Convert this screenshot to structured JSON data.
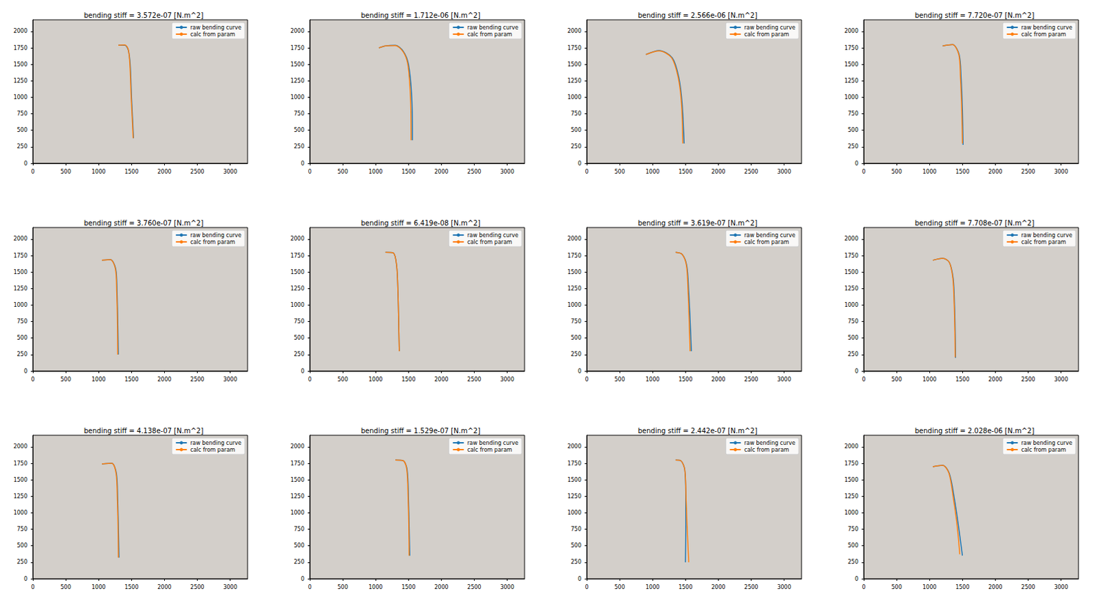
{
  "chart_data": [
    {
      "type": "line",
      "title": "bending stiff = 3.572e-07 [N.m^2]",
      "xlim": [
        0,
        3264
      ],
      "ylim": [
        0,
        2176
      ],
      "xticks": [
        0,
        500,
        1000,
        1500,
        2000,
        2500,
        3000
      ],
      "yticks": [
        0,
        250,
        500,
        750,
        1000,
        1250,
        1500,
        1750,
        2000
      ],
      "legend": "upper right",
      "grid": false,
      "series": [
        {
          "name": "raw bending curve",
          "color": "#1f77b4",
          "x": [
            1300,
            1400,
            1450,
            1480,
            1500,
            1520,
            1530
          ],
          "values": [
            1790,
            1790,
            1720,
            1500,
            1000,
            600,
            380
          ]
        },
        {
          "name": "calc from param",
          "color": "#ff7f0e",
          "x": [
            1300,
            1400,
            1450,
            1475,
            1495,
            1515,
            1525
          ],
          "values": [
            1790,
            1795,
            1730,
            1500,
            1000,
            600,
            380
          ]
        }
      ]
    },
    {
      "type": "line",
      "title": "bending stiff = 1.712e-06 [N.m^2]",
      "xlim": [
        0,
        3264
      ],
      "ylim": [
        0,
        2176
      ],
      "xticks": [
        0,
        500,
        1000,
        1500,
        2000,
        2500,
        3000
      ],
      "yticks": [
        0,
        250,
        500,
        750,
        1000,
        1250,
        1500,
        1750,
        2000
      ],
      "legend": "upper right",
      "grid": false,
      "series": [
        {
          "name": "raw bending curve",
          "color": "#1f77b4",
          "x": [
            1050,
            1150,
            1300,
            1420,
            1500,
            1550,
            1560
          ],
          "values": [
            1750,
            1780,
            1790,
            1700,
            1500,
            1000,
            350
          ]
        },
        {
          "name": "calc from param",
          "color": "#ff7f0e",
          "x": [
            1050,
            1150,
            1300,
            1420,
            1490,
            1530,
            1540
          ],
          "values": [
            1750,
            1780,
            1785,
            1690,
            1500,
            1000,
            350
          ]
        }
      ]
    },
    {
      "type": "line",
      "title": "bending stiff = 2.566e-06 [N.m^2]",
      "xlim": [
        0,
        3264
      ],
      "ylim": [
        0,
        2176
      ],
      "xticks": [
        0,
        500,
        1000,
        1500,
        2000,
        2500,
        3000
      ],
      "yticks": [
        0,
        250,
        500,
        750,
        1000,
        1250,
        1500,
        1750,
        2000
      ],
      "legend": "upper right",
      "grid": false,
      "series": [
        {
          "name": "raw bending curve",
          "color": "#1f77b4",
          "x": [
            900,
            1100,
            1300,
            1400,
            1450,
            1480
          ],
          "values": [
            1650,
            1710,
            1600,
            1300,
            900,
            300
          ]
        },
        {
          "name": "calc from param",
          "color": "#ff7f0e",
          "x": [
            900,
            1100,
            1290,
            1390,
            1440,
            1460
          ],
          "values": [
            1650,
            1705,
            1600,
            1300,
            900,
            300
          ]
        }
      ]
    },
    {
      "type": "line",
      "title": "bending stiff = 7.720e-07 [N.m^2]",
      "xlim": [
        0,
        3264
      ],
      "ylim": [
        0,
        2176
      ],
      "xticks": [
        0,
        500,
        1000,
        1500,
        2000,
        2500,
        3000
      ],
      "yticks": [
        0,
        250,
        500,
        750,
        1000,
        1250,
        1500,
        1750,
        2000
      ],
      "legend": "upper right",
      "grid": false,
      "series": [
        {
          "name": "raw bending curve",
          "color": "#1f77b4",
          "x": [
            1200,
            1350,
            1450,
            1480,
            1500,
            1510
          ],
          "values": [
            1780,
            1800,
            1650,
            1300,
            800,
            280
          ]
        },
        {
          "name": "calc from param",
          "color": "#ff7f0e",
          "x": [
            1200,
            1350,
            1445,
            1470,
            1490,
            1500
          ],
          "values": [
            1780,
            1800,
            1650,
            1300,
            800,
            300
          ]
        }
      ]
    },
    {
      "type": "line",
      "title": "bending stiff = 3.760e-07 [N.m^2]",
      "xlim": [
        0,
        3264
      ],
      "ylim": [
        0,
        2176
      ],
      "xticks": [
        0,
        500,
        1000,
        1500,
        2000,
        2500,
        3000
      ],
      "yticks": [
        0,
        250,
        500,
        750,
        1000,
        1250,
        1500,
        1750,
        2000
      ],
      "legend": "upper right",
      "grid": false,
      "series": [
        {
          "name": "raw bending curve",
          "color": "#1f77b4",
          "x": [
            1050,
            1180,
            1260,
            1280,
            1290,
            1300
          ],
          "values": [
            1680,
            1690,
            1550,
            1200,
            800,
            250
          ]
        },
        {
          "name": "calc from param",
          "color": "#ff7f0e",
          "x": [
            1050,
            1180,
            1255,
            1275,
            1285,
            1290
          ],
          "values": [
            1680,
            1690,
            1550,
            1200,
            800,
            250
          ]
        }
      ]
    },
    {
      "type": "line",
      "title": "bending stiff = 6.419e-08 [N.m^2]",
      "xlim": [
        0,
        3264
      ],
      "ylim": [
        0,
        2176
      ],
      "xticks": [
        0,
        500,
        1000,
        1500,
        2000,
        2500,
        3000
      ],
      "yticks": [
        0,
        250,
        500,
        750,
        1000,
        1250,
        1500,
        1750,
        2000
      ],
      "legend": "upper right",
      "grid": false,
      "series": [
        {
          "name": "raw bending curve",
          "color": "#1f77b4",
          "x": [
            1150,
            1270,
            1320,
            1340,
            1350,
            1360
          ],
          "values": [
            1800,
            1790,
            1600,
            1200,
            800,
            300
          ]
        },
        {
          "name": "calc from param",
          "color": "#ff7f0e",
          "x": [
            1150,
            1270,
            1320,
            1340,
            1350,
            1360
          ],
          "values": [
            1800,
            1790,
            1600,
            1200,
            800,
            300
          ]
        }
      ]
    },
    {
      "type": "line",
      "title": "bending stiff = 3.619e-07 [N.m^2]",
      "xlim": [
        0,
        3264
      ],
      "ylim": [
        0,
        2176
      ],
      "xticks": [
        0,
        500,
        1000,
        1500,
        2000,
        2500,
        3000
      ],
      "yticks": [
        0,
        250,
        500,
        750,
        1000,
        1250,
        1500,
        1750,
        2000
      ],
      "legend": "upper right",
      "grid": false,
      "series": [
        {
          "name": "raw bending curve",
          "color": "#1f77b4",
          "x": [
            1350,
            1450,
            1520,
            1550,
            1570,
            1590
          ],
          "values": [
            1800,
            1770,
            1600,
            1200,
            800,
            300
          ]
        },
        {
          "name": "calc from param",
          "color": "#ff7f0e",
          "x": [
            1350,
            1450,
            1515,
            1540,
            1555,
            1570
          ],
          "values": [
            1800,
            1770,
            1600,
            1200,
            800,
            300
          ]
        }
      ]
    },
    {
      "type": "line",
      "title": "bending stiff = 7.708e-07 [N.m^2]",
      "xlim": [
        0,
        3264
      ],
      "ylim": [
        0,
        2176
      ],
      "xticks": [
        0,
        500,
        1000,
        1500,
        2000,
        2500,
        3000
      ],
      "yticks": [
        0,
        250,
        500,
        750,
        1000,
        1250,
        1500,
        1750,
        2000
      ],
      "legend": "upper right",
      "grid": false,
      "series": [
        {
          "name": "raw bending curve",
          "color": "#1f77b4",
          "x": [
            1050,
            1200,
            1300,
            1360,
            1380,
            1390,
            1395
          ],
          "values": [
            1680,
            1710,
            1650,
            1400,
            1000,
            600,
            200
          ]
        },
        {
          "name": "calc from param",
          "color": "#ff7f0e",
          "x": [
            1050,
            1200,
            1300,
            1355,
            1375,
            1385,
            1390
          ],
          "values": [
            1680,
            1710,
            1650,
            1400,
            1000,
            600,
            210
          ]
        }
      ]
    },
    {
      "type": "line",
      "title": "bending stiff = 4.138e-07 [N.m^2]",
      "xlim": [
        0,
        3264
      ],
      "ylim": [
        0,
        2176
      ],
      "xticks": [
        0,
        500,
        1000,
        1500,
        2000,
        2500,
        3000
      ],
      "yticks": [
        0,
        250,
        500,
        750,
        1000,
        1250,
        1500,
        1750,
        2000
      ],
      "legend": "upper right",
      "grid": false,
      "series": [
        {
          "name": "raw bending curve",
          "color": "#1f77b4",
          "x": [
            1050,
            1200,
            1270,
            1290,
            1300,
            1310
          ],
          "values": [
            1740,
            1750,
            1600,
            1200,
            800,
            320
          ]
        },
        {
          "name": "calc from param",
          "color": "#ff7f0e",
          "x": [
            1050,
            1200,
            1265,
            1285,
            1295,
            1300
          ],
          "values": [
            1740,
            1750,
            1600,
            1200,
            800,
            320
          ]
        }
      ]
    },
    {
      "type": "line",
      "title": "bending stiff = 1.529e-07 [N.m^2]",
      "xlim": [
        0,
        3264
      ],
      "ylim": [
        0,
        2176
      ],
      "xticks": [
        0,
        500,
        1000,
        1500,
        2000,
        2500,
        3000
      ],
      "yticks": [
        0,
        250,
        500,
        750,
        1000,
        1250,
        1500,
        1750,
        2000
      ],
      "legend": "upper right",
      "grid": false,
      "series": [
        {
          "name": "raw bending curve",
          "color": "#1f77b4",
          "x": [
            1300,
            1420,
            1480,
            1500,
            1510,
            1520
          ],
          "values": [
            1800,
            1790,
            1650,
            1200,
            800,
            350
          ]
        },
        {
          "name": "calc from param",
          "color": "#ff7f0e",
          "x": [
            1300,
            1420,
            1475,
            1495,
            1505,
            1510
          ],
          "values": [
            1800,
            1790,
            1650,
            1200,
            800,
            350
          ]
        }
      ]
    },
    {
      "type": "line",
      "title": "bending stiff = 2.442e-07 [N.m^2]",
      "xlim": [
        0,
        3264
      ],
      "ylim": [
        0,
        2176
      ],
      "xticks": [
        0,
        500,
        1000,
        1500,
        2000,
        2500,
        3000
      ],
      "yticks": [
        0,
        250,
        500,
        750,
        1000,
        1250,
        1500,
        1750,
        2000
      ],
      "legend": "upper right",
      "grid": false,
      "series": [
        {
          "name": "raw bending curve",
          "color": "#1f77b4",
          "x": [
            1350,
            1430,
            1490,
            1505,
            1505,
            1500
          ],
          "values": [
            1800,
            1790,
            1650,
            1200,
            800,
            250
          ]
        },
        {
          "name": "calc from param",
          "color": "#ff7f0e",
          "x": [
            1350,
            1430,
            1490,
            1510,
            1525,
            1550
          ],
          "values": [
            1800,
            1790,
            1650,
            1200,
            800,
            250
          ]
        }
      ]
    },
    {
      "type": "line",
      "title": "bending stiff = 2.028e-06 [N.m^2]",
      "xlim": [
        0,
        3264
      ],
      "ylim": [
        0,
        2176
      ],
      "xticks": [
        0,
        500,
        1000,
        1500,
        2000,
        2500,
        3000
      ],
      "yticks": [
        0,
        250,
        500,
        750,
        1000,
        1250,
        1500,
        1750,
        2000
      ],
      "legend": "upper right",
      "grid": false,
      "series": [
        {
          "name": "raw bending curve",
          "color": "#1f77b4",
          "x": [
            1050,
            1200,
            1300,
            1380,
            1440,
            1500
          ],
          "values": [
            1700,
            1720,
            1600,
            1200,
            800,
            350
          ]
        },
        {
          "name": "calc from param",
          "color": "#ff7f0e",
          "x": [
            1050,
            1200,
            1295,
            1365,
            1420,
            1460
          ],
          "values": [
            1700,
            1720,
            1600,
            1200,
            800,
            370
          ]
        }
      ]
    }
  ]
}
